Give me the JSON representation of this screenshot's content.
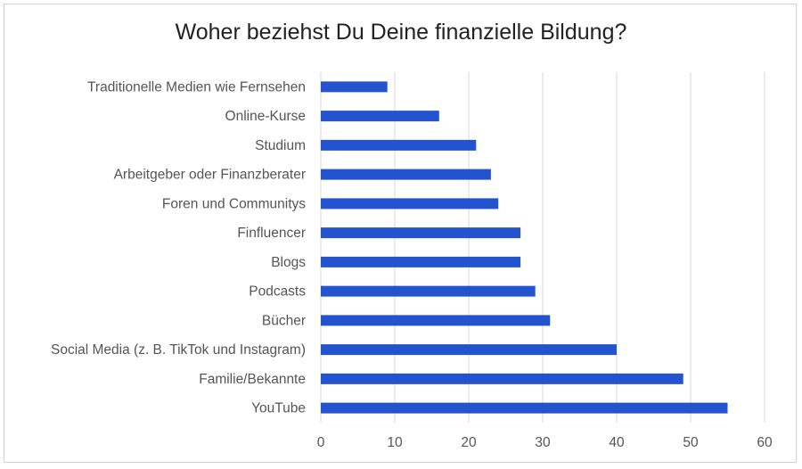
{
  "chart_data": {
    "type": "bar",
    "orientation": "horizontal",
    "title": "Woher beziehst Du Deine finanzielle Bildung?",
    "categories": [
      "Traditionelle Medien wie Fernsehen",
      "Online-Kurse",
      "Studium",
      "Arbeitgeber oder Finanzberater",
      "Foren und Communitys",
      "Finfluencer",
      "Blogs",
      "Podcasts",
      "Bücher",
      "Social Media (z. B. TikTok und Instagram)",
      "Familie/Bekannte",
      "YouTube"
    ],
    "values": [
      9,
      16,
      21,
      23,
      24,
      27,
      27,
      29,
      31,
      40,
      49,
      55
    ],
    "xlim": [
      0,
      60
    ],
    "xticks": [
      "0",
      "10",
      "20",
      "30",
      "40",
      "50",
      "60"
    ],
    "grid": "vertical",
    "bar_color": "#2453CF",
    "xlabel": "",
    "ylabel": ""
  }
}
